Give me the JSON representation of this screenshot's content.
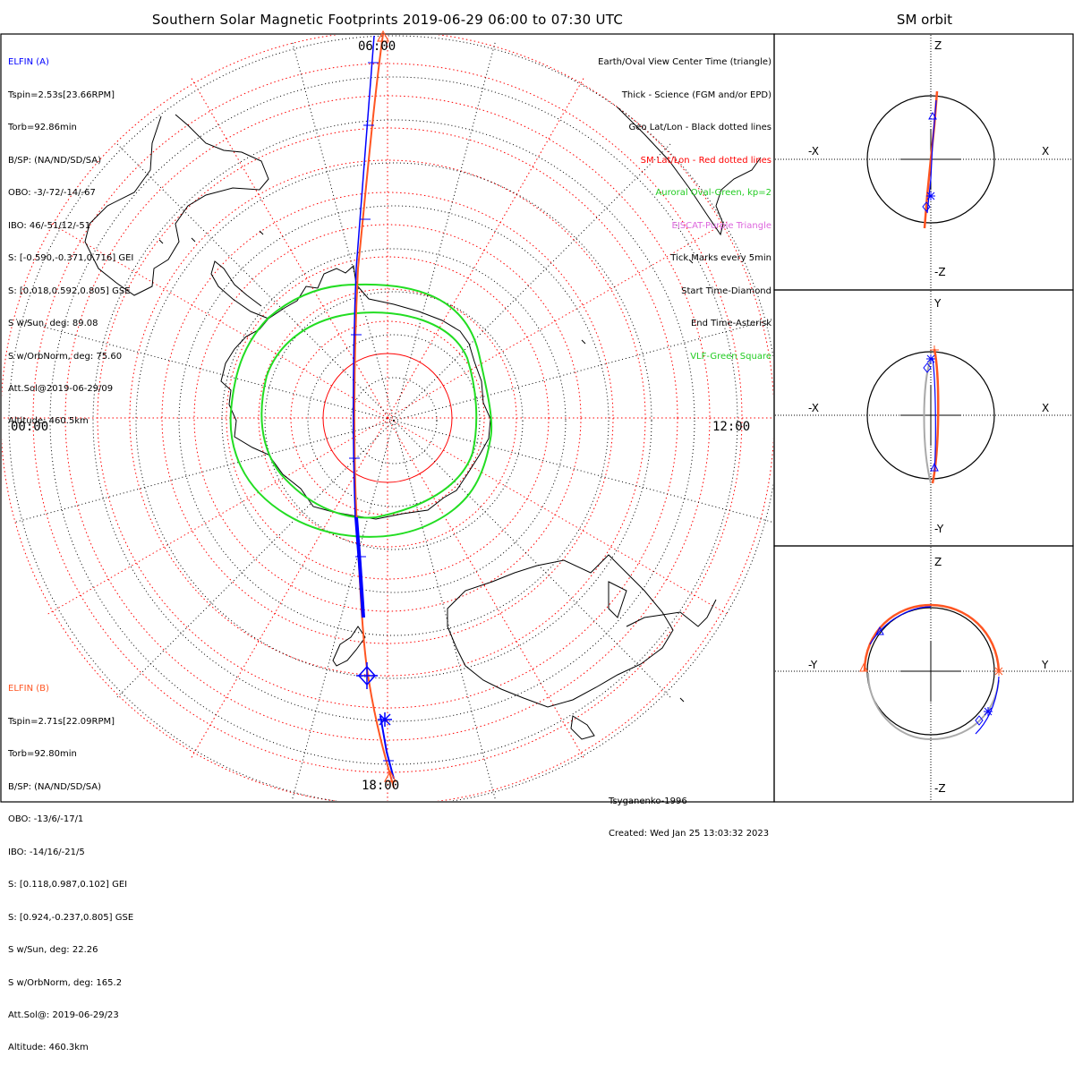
{
  "title": "Southern Solar Magnetic Footprints 2019-06-29 06:00 to 07:30 UTC",
  "orbit_title": "SM orbit",
  "map": {
    "labels": {
      "top": "06:00",
      "bottom": "18:00",
      "left": "00:00",
      "right": "12:00"
    },
    "colors": {
      "geo_grid": "#000000",
      "sm_grid": "#ff0000",
      "auroral_oval": "#22dd22",
      "elfin_a": "#0000ff",
      "elfin_b": "#ff5522"
    }
  },
  "elfin_a": {
    "name": "ELFIN (A)",
    "lines": [
      "Tspin=2.53s[23.66RPM]",
      "Torb=92.86min",
      "B/SP: (NA/ND/SD/SA)",
      "OBO: -3/-72/-14/-67",
      "IBO: 46/-51/12/-51",
      "S: [-0.590,-0.371,0.716] GEI",
      "S: [0.018,0.592,0.805] GSE",
      "S w/Sun, deg: 89.08",
      "S w/OrbNorm, deg: 75.60",
      "Att.Sol@2019-06-29/09",
      "Altitude: 460.5km"
    ]
  },
  "elfin_b": {
    "name": "ELFIN (B)",
    "lines": [
      "Tspin=2.71s[22.09RPM]",
      "Torb=92.80min",
      "B/SP: (NA/ND/SD/SA)",
      "OBO: -13/6/-17/1",
      "IBO: -14/16/-21/5",
      "S: [0.118,0.987,0.102] GEI",
      "S: [0.924,-0.237,0.805] GSE",
      "S w/Sun, deg: 22.26",
      "S w/OrbNorm, deg: 165.2",
      "Att.Sol@: 2019-06-29/23",
      "Altitude: 460.3km"
    ]
  },
  "legend": [
    {
      "text": "Earth/Oval View Center Time (triangle)",
      "color": "#000000"
    },
    {
      "text": "Thick - Science (FGM and/or EPD)",
      "color": "#000000"
    },
    {
      "text": "Geo Lat/Lon - Black dotted lines",
      "color": "#000000"
    },
    {
      "text": "SM Lat/Lon - Red dotted lines",
      "color": "#ff0000"
    },
    {
      "text": "Auroral Oval-Green, kp=2",
      "color": "#22cc22"
    },
    {
      "text": "EISCAT-Purple Triangle",
      "color": "#dd66dd"
    },
    {
      "text": "Tick Marks every 5min",
      "color": "#000000"
    },
    {
      "text": "Start Time-Diamond",
      "color": "#000000"
    },
    {
      "text": "End Time-Asterisk",
      "color": "#000000"
    },
    {
      "text": "VLF-Green Square",
      "color": "#22cc22"
    }
  ],
  "credits": {
    "model": "Tsyganenko-1996",
    "created": "Created: Wed Jan 25 13:03:32 2023"
  },
  "orbit_panels": [
    {
      "name": "xz",
      "top": "Z",
      "bottom": "-Z",
      "left": "-X",
      "right": "X"
    },
    {
      "name": "xy",
      "top": "Y",
      "bottom": "-Y",
      "left": "-X",
      "right": "X"
    },
    {
      "name": "yz",
      "top": "Z",
      "bottom": "-Z",
      "left": "-Y",
      "right": "Y"
    }
  ]
}
